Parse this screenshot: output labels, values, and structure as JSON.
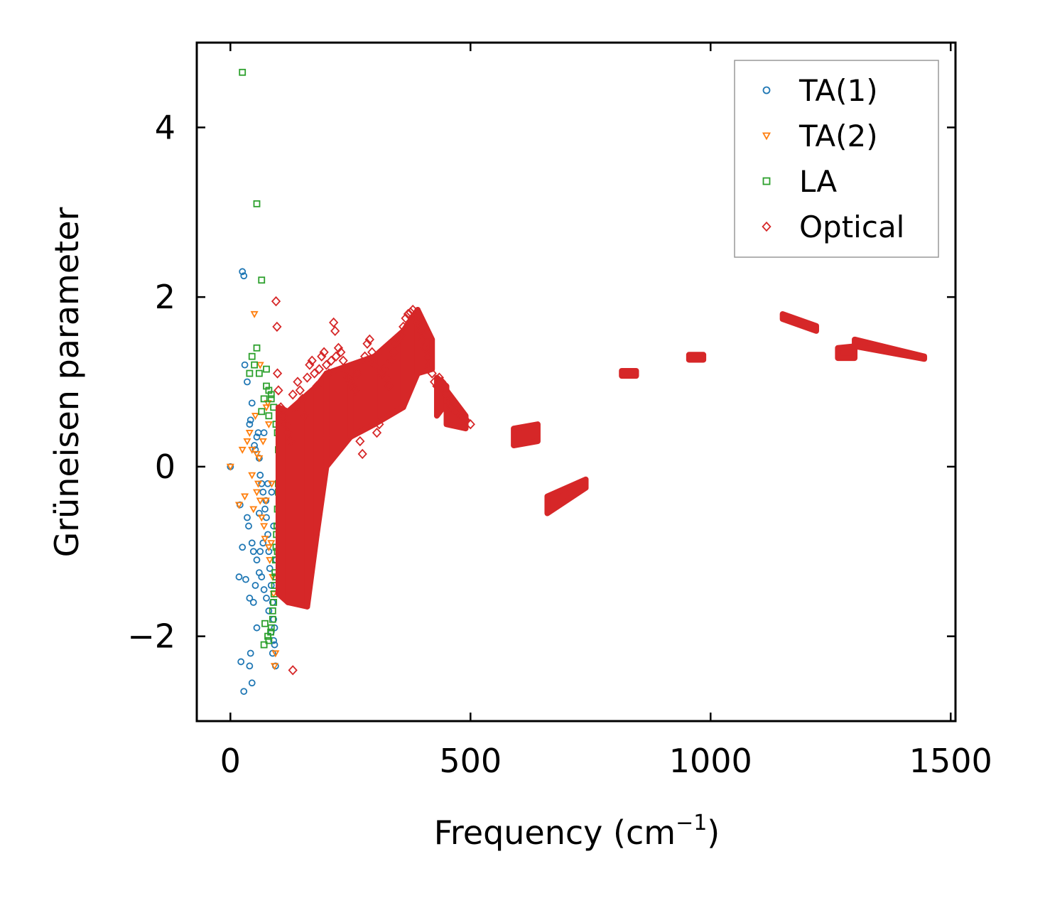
{
  "chart_data": {
    "type": "scatter",
    "title": "",
    "xlabel": "Frequency (cm",
    "xlabel_sup": "−1",
    "xlabel_suffix": ")",
    "ylabel": "Grüneisen parameter",
    "xlim": [
      -70,
      1510
    ],
    "ylim": [
      -3.0,
      5.0
    ],
    "xticks": [
      0,
      500,
      1000,
      1500
    ],
    "xtick_labels": [
      "0",
      "500",
      "1000",
      "1500"
    ],
    "yticks": [
      -2,
      0,
      2,
      4
    ],
    "ytick_labels": [
      "−2",
      "0",
      "2",
      "4"
    ],
    "legend_position": "top-right",
    "series": [
      {
        "name": "TA(1)",
        "marker": "circle",
        "color": "#1f77b4",
        "points": [
          [
            0,
            0
          ],
          [
            20,
            -0.45
          ],
          [
            25,
            2.3
          ],
          [
            28,
            2.25
          ],
          [
            30,
            1.2
          ],
          [
            35,
            1.0
          ],
          [
            40,
            0.5
          ],
          [
            42,
            0.55
          ],
          [
            45,
            0.75
          ],
          [
            50,
            0.25
          ],
          [
            52,
            0.2
          ],
          [
            55,
            0.35
          ],
          [
            58,
            0.4
          ],
          [
            60,
            0.1
          ],
          [
            62,
            -0.1
          ],
          [
            65,
            -0.2
          ],
          [
            68,
            -0.3
          ],
          [
            70,
            0.4
          ],
          [
            72,
            -0.5
          ],
          [
            75,
            -0.6
          ],
          [
            78,
            -0.8
          ],
          [
            80,
            -1.0
          ],
          [
            82,
            -1.2
          ],
          [
            85,
            -1.4
          ],
          [
            88,
            -1.6
          ],
          [
            90,
            -1.8
          ],
          [
            92,
            -1.9
          ],
          [
            35,
            -0.6
          ],
          [
            38,
            -0.7
          ],
          [
            45,
            -0.9
          ],
          [
            48,
            -1.0
          ],
          [
            55,
            -1.1
          ],
          [
            60,
            -1.25
          ],
          [
            65,
            -1.3
          ],
          [
            70,
            -1.45
          ],
          [
            75,
            -1.55
          ],
          [
            80,
            -1.7
          ],
          [
            85,
            -1.95
          ],
          [
            90,
            -2.05
          ],
          [
            92,
            -2.1
          ],
          [
            94,
            -2.35
          ],
          [
            25,
            -0.95
          ],
          [
            18,
            -1.3
          ],
          [
            32,
            -1.33
          ],
          [
            40,
            -1.55
          ],
          [
            48,
            -1.6
          ],
          [
            55,
            -1.9
          ],
          [
            22,
            -2.3
          ],
          [
            40,
            -2.35
          ],
          [
            42,
            -2.2
          ],
          [
            28,
            -2.65
          ],
          [
            45,
            -2.55
          ],
          [
            52,
            -1.4
          ],
          [
            62,
            -1.0
          ],
          [
            68,
            -0.9
          ],
          [
            74,
            -0.4
          ],
          [
            78,
            -0.2
          ],
          [
            86,
            -0.3
          ],
          [
            90,
            -0.7
          ],
          [
            95,
            -1.1
          ],
          [
            88,
            -2.2
          ],
          [
            60,
            -0.55
          ]
        ]
      },
      {
        "name": "TA(2)",
        "marker": "triangle-down",
        "color": "#ff7f0e",
        "points": [
          [
            0,
            0
          ],
          [
            18,
            -0.45
          ],
          [
            25,
            0.2
          ],
          [
            30,
            -0.35
          ],
          [
            35,
            0.3
          ],
          [
            40,
            0.4
          ],
          [
            45,
            0.2
          ],
          [
            48,
            -0.5
          ],
          [
            50,
            1.8
          ],
          [
            52,
            0.6
          ],
          [
            55,
            0.15
          ],
          [
            58,
            -0.2
          ],
          [
            60,
            0.1
          ],
          [
            62,
            -0.4
          ],
          [
            65,
            -0.6
          ],
          [
            68,
            0.3
          ],
          [
            70,
            -0.7
          ],
          [
            72,
            -0.85
          ],
          [
            75,
            0.7
          ],
          [
            78,
            0.75
          ],
          [
            80,
            -0.95
          ],
          [
            82,
            -1.1
          ],
          [
            85,
            -0.9
          ],
          [
            88,
            -1.3
          ],
          [
            90,
            -1.5
          ],
          [
            92,
            -2.35
          ],
          [
            94,
            -2.2
          ],
          [
            62,
            1.2
          ],
          [
            55,
            -0.3
          ],
          [
            45,
            -0.1
          ],
          [
            80,
            0.5
          ],
          [
            86,
            -0.2
          ],
          [
            74,
            -0.4
          ]
        ]
      },
      {
        "name": "LA",
        "marker": "square",
        "color": "#2ca02c",
        "points": [
          [
            25,
            4.65
          ],
          [
            55,
            3.1
          ],
          [
            65,
            2.2
          ],
          [
            55,
            1.4
          ],
          [
            45,
            1.3
          ],
          [
            40,
            1.1
          ],
          [
            50,
            1.2
          ],
          [
            60,
            1.1
          ],
          [
            75,
            1.15
          ],
          [
            80,
            0.9
          ],
          [
            85,
            0.8
          ],
          [
            90,
            0.7
          ],
          [
            95,
            0.5
          ],
          [
            98,
            0.4
          ],
          [
            100,
            0.2
          ],
          [
            102,
            0.0
          ],
          [
            100,
            -0.2
          ],
          [
            98,
            -0.5
          ],
          [
            96,
            -0.8
          ],
          [
            94,
            -1.1
          ],
          [
            92,
            -1.4
          ],
          [
            90,
            -1.6
          ],
          [
            88,
            -1.8
          ],
          [
            85,
            -1.9
          ],
          [
            80,
            -2.05
          ],
          [
            70,
            -2.1
          ],
          [
            102,
            -0.1
          ],
          [
            100,
            -0.3
          ],
          [
            97,
            -0.7
          ],
          [
            95,
            -0.95
          ],
          [
            93,
            -1.25
          ],
          [
            91,
            -1.5
          ],
          [
            88,
            -1.7
          ],
          [
            84,
            -1.95
          ],
          [
            78,
            -2.0
          ],
          [
            72,
            -1.85
          ],
          [
            80,
            0.6
          ],
          [
            85,
            0.85
          ],
          [
            75,
            0.95
          ],
          [
            70,
            0.8
          ],
          [
            65,
            0.65
          ],
          [
            95,
            -1.3
          ],
          [
            98,
            -1.0
          ]
        ]
      },
      {
        "name": "Optical",
        "marker": "diamond",
        "color": "#d62728",
        "points": [
          [
            95,
            1.95
          ],
          [
            97,
            1.65
          ],
          [
            98,
            1.1
          ],
          [
            100,
            0.9
          ],
          [
            105,
            0.7
          ],
          [
            110,
            0.6
          ],
          [
            115,
            0.5
          ],
          [
            120,
            0.4
          ],
          [
            125,
            0.3
          ],
          [
            130,
            -2.4
          ],
          [
            130,
            0.85
          ],
          [
            135,
            0.7
          ],
          [
            140,
            1.0
          ],
          [
            145,
            0.9
          ],
          [
            150,
            0.8
          ],
          [
            155,
            0.6
          ],
          [
            160,
            1.05
          ],
          [
            165,
            1.2
          ],
          [
            170,
            1.25
          ],
          [
            175,
            1.1
          ],
          [
            180,
            0.95
          ],
          [
            185,
            1.15
          ],
          [
            190,
            1.3
          ],
          [
            195,
            1.35
          ],
          [
            200,
            1.2
          ],
          [
            205,
            1.1
          ],
          [
            210,
            1.25
          ],
          [
            215,
            1.7
          ],
          [
            218,
            1.6
          ],
          [
            220,
            1.3
          ],
          [
            225,
            1.4
          ],
          [
            230,
            1.35
          ],
          [
            235,
            1.25
          ],
          [
            240,
            1.15
          ],
          [
            245,
            1.05
          ],
          [
            250,
            1.0
          ],
          [
            255,
            0.95
          ],
          [
            260,
            0.9
          ],
          [
            265,
            1.1
          ],
          [
            270,
            0.3
          ],
          [
            275,
            0.15
          ],
          [
            280,
            1.3
          ],
          [
            285,
            1.45
          ],
          [
            290,
            1.5
          ],
          [
            295,
            1.35
          ],
          [
            300,
            1.2
          ],
          [
            305,
            0.4
          ],
          [
            310,
            0.5
          ],
          [
            315,
            1.1
          ],
          [
            320,
            1.15
          ],
          [
            325,
            1.05
          ],
          [
            330,
            0.95
          ],
          [
            335,
            1.25
          ],
          [
            340,
            1.35
          ],
          [
            345,
            1.45
          ],
          [
            350,
            1.5
          ],
          [
            355,
            1.55
          ],
          [
            360,
            1.65
          ],
          [
            365,
            1.75
          ],
          [
            370,
            1.8
          ],
          [
            375,
            1.82
          ],
          [
            380,
            1.85
          ],
          [
            385,
            1.75
          ],
          [
            390,
            1.7
          ],
          [
            395,
            1.6
          ],
          [
            400,
            1.5
          ],
          [
            405,
            1.4
          ],
          [
            410,
            1.3
          ],
          [
            415,
            1.2
          ],
          [
            420,
            1.1
          ],
          [
            425,
            1.0
          ],
          [
            430,
            0.95
          ],
          [
            435,
            1.05
          ],
          [
            440,
            1.0
          ],
          [
            445,
            0.9
          ],
          [
            450,
            0.85
          ],
          [
            455,
            0.75
          ],
          [
            460,
            0.7
          ],
          [
            470,
            0.65
          ],
          [
            480,
            0.6
          ],
          [
            490,
            0.55
          ],
          [
            500,
            0.5
          ]
        ],
        "dense_regions": [
          {
            "x_from": 100,
            "x_to": 120,
            "y_low_from": -1.5,
            "y_low_to": -1.6,
            "y_high_from": 0.7,
            "y_high_to": 0.65
          },
          {
            "x_from": 120,
            "x_to": 160,
            "y_low_from": -1.6,
            "y_low_to": -1.65,
            "y_high_from": 0.65,
            "y_high_to": 0.85
          },
          {
            "x_from": 160,
            "x_to": 180,
            "y_low_from": -1.65,
            "y_low_to": -0.8,
            "y_high_from": 0.85,
            "y_high_to": 0.95
          },
          {
            "x_from": 180,
            "x_to": 200,
            "y_low_from": -0.8,
            "y_low_to": 0.0,
            "y_high_from": 0.95,
            "y_high_to": 1.1
          },
          {
            "x_from": 200,
            "x_to": 250,
            "y_low_from": 0.0,
            "y_low_to": 0.35,
            "y_high_from": 1.1,
            "y_high_to": 1.2
          },
          {
            "x_from": 250,
            "x_to": 300,
            "y_low_from": 0.35,
            "y_low_to": 0.5,
            "y_high_from": 1.2,
            "y_high_to": 1.3
          },
          {
            "x_from": 300,
            "x_to": 360,
            "y_low_from": 0.5,
            "y_low_to": 0.7,
            "y_high_from": 1.3,
            "y_high_to": 1.6
          },
          {
            "x_from": 360,
            "x_to": 390,
            "y_low_from": 0.7,
            "y_low_to": 1.1,
            "y_high_from": 1.6,
            "y_high_to": 1.85
          },
          {
            "x_from": 390,
            "x_to": 420,
            "y_low_from": 1.1,
            "y_low_to": 1.15,
            "y_high_from": 1.85,
            "y_high_to": 1.5
          },
          {
            "x_from": 430,
            "x_to": 450,
            "y_low_from": 0.6,
            "y_low_to": 0.75,
            "y_high_from": 1.05,
            "y_high_to": 0.95
          },
          {
            "x_from": 450,
            "x_to": 490,
            "y_low_from": 0.5,
            "y_low_to": 0.45,
            "y_high_from": 0.9,
            "y_high_to": 0.6
          },
          {
            "x_from": 590,
            "x_to": 640,
            "y_low_from": 0.25,
            "y_low_to": 0.3,
            "y_high_from": 0.45,
            "y_high_to": 0.5
          },
          {
            "x_from": 660,
            "x_to": 740,
            "y_low_from": -0.55,
            "y_low_to": -0.25,
            "y_high_from": -0.35,
            "y_high_to": -0.15
          },
          {
            "x_from": 815,
            "x_to": 845,
            "y_low_from": 1.07,
            "y_low_to": 1.07,
            "y_high_from": 1.13,
            "y_high_to": 1.13
          },
          {
            "x_from": 955,
            "x_to": 985,
            "y_low_from": 1.26,
            "y_low_to": 1.26,
            "y_high_from": 1.32,
            "y_high_to": 1.32
          },
          {
            "x_from": 1150,
            "x_to": 1220,
            "y_low_from": 1.74,
            "y_low_to": 1.6,
            "y_high_from": 1.8,
            "y_high_to": 1.66
          },
          {
            "x_from": 1265,
            "x_to": 1300,
            "y_low_from": 1.28,
            "y_low_to": 1.28,
            "y_high_from": 1.4,
            "y_high_to": 1.42
          },
          {
            "x_from": 1300,
            "x_to": 1445,
            "y_low_from": 1.42,
            "y_low_to": 1.27,
            "y_high_from": 1.5,
            "y_high_to": 1.3
          }
        ]
      }
    ]
  }
}
